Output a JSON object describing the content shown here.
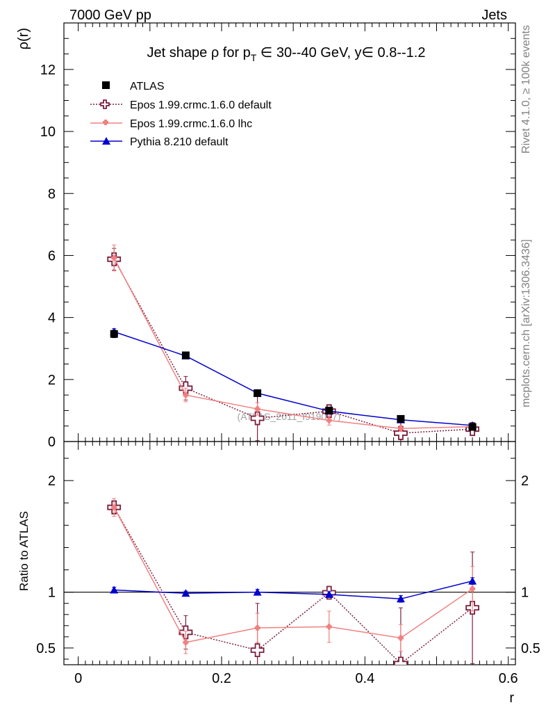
{
  "header": {
    "left": "7000 GeV pp",
    "right": "Jets"
  },
  "title": {
    "prefix": "Jet shape ",
    "rho": "ρ",
    "for": " for p",
    "sub": "T",
    "in1": " ∈ 30--40 GeV, y",
    "in2": "∈ 0.8--1.2"
  },
  "side_labels": {
    "rivet": "Rivet 4.1.0, ≥ 100k events",
    "mcplots": "mcplots.cern.ch [arXiv:1306.3436]"
  },
  "watermark": "(ATLAS_2011_I919017)",
  "colors": {
    "atlas": "#000000",
    "epos_default": "#7a1f3d",
    "epos_lhc": "#f08080",
    "pythia": "#0000cc"
  },
  "chart_data": [
    {
      "type": "line",
      "panel": "main",
      "ylabel": "ρ(r)",
      "xlim": [
        -0.02,
        0.61
      ],
      "ylim": [
        0,
        13.5
      ],
      "yticks": [
        0,
        2,
        4,
        6,
        8,
        10,
        12
      ],
      "ytick_labels": [
        "0",
        "2",
        "4",
        "6",
        "8",
        "10",
        "12"
      ],
      "x": [
        0.05,
        0.15,
        0.25,
        0.35,
        0.45,
        0.55
      ],
      "series": [
        {
          "key": "atlas",
          "name": "ATLAS",
          "values": [
            3.47,
            2.78,
            1.56,
            1.0,
            0.73,
            0.47
          ],
          "errors": [
            0.12,
            0.08,
            0.06,
            0.05,
            0.04,
            0.03
          ]
        },
        {
          "key": "epos_default",
          "name": "Epos 1.99.crmc.1.6.0 default",
          "values": [
            5.88,
            1.72,
            0.75,
            0.98,
            0.27,
            0.4
          ],
          "errors": [
            0.35,
            0.38,
            0.72,
            0.15,
            0.35,
            0.15
          ]
        },
        {
          "key": "epos_lhc",
          "name": "Epos 1.99.crmc.1.6.0 lhc",
          "values": [
            5.92,
            1.5,
            1.05,
            0.68,
            0.42,
            0.48
          ],
          "errors": [
            0.42,
            0.22,
            0.2,
            0.15,
            0.1,
            0.08
          ]
        },
        {
          "key": "pythia",
          "name": "Pythia 8.210 default",
          "values": [
            3.54,
            2.76,
            1.56,
            0.98,
            0.7,
            0.52
          ],
          "errors": [
            0.1,
            0.06,
            0.05,
            0.04,
            0.04,
            0.03
          ]
        }
      ]
    },
    {
      "type": "line",
      "panel": "ratio",
      "ylabel": "Ratio to ATLAS",
      "xlabel": "r",
      "xlim": [
        -0.02,
        0.61
      ],
      "ylim": [
        0.35,
        2.35
      ],
      "xticks": [
        0,
        0.2,
        0.4,
        0.6
      ],
      "xtick_labels": [
        "0",
        "0.2",
        "0.4",
        "0.6"
      ],
      "yticks": [
        0.5,
        1,
        2
      ],
      "ytick_labels": [
        "0.5",
        "1",
        "2"
      ],
      "x": [
        0.05,
        0.15,
        0.25,
        0.35,
        0.45,
        0.55
      ],
      "series": [
        {
          "key": "epos_default",
          "name": "Epos 1.99.crmc.1.6.0 default",
          "values": [
            1.76,
            0.64,
            0.48,
            0.995,
            0.36,
            0.86
          ],
          "errors": [
            0.06,
            0.15,
            0.42,
            0.02,
            0.5,
            0.5
          ]
        },
        {
          "key": "epos_lhc",
          "name": "Epos 1.99.crmc.1.6.0 lhc",
          "values": [
            1.76,
            0.55,
            0.68,
            0.69,
            0.59,
            1.03
          ],
          "errors": [
            0.08,
            0.1,
            0.13,
            0.14,
            0.12,
            0.2
          ]
        },
        {
          "key": "pythia",
          "name": "Pythia 8.210 default",
          "values": [
            1.02,
            0.99,
            1.0,
            0.98,
            0.94,
            1.1
          ],
          "errors": [
            0.025,
            0.02,
            0.025,
            0.025,
            0.03,
            0.03
          ]
        }
      ]
    }
  ]
}
